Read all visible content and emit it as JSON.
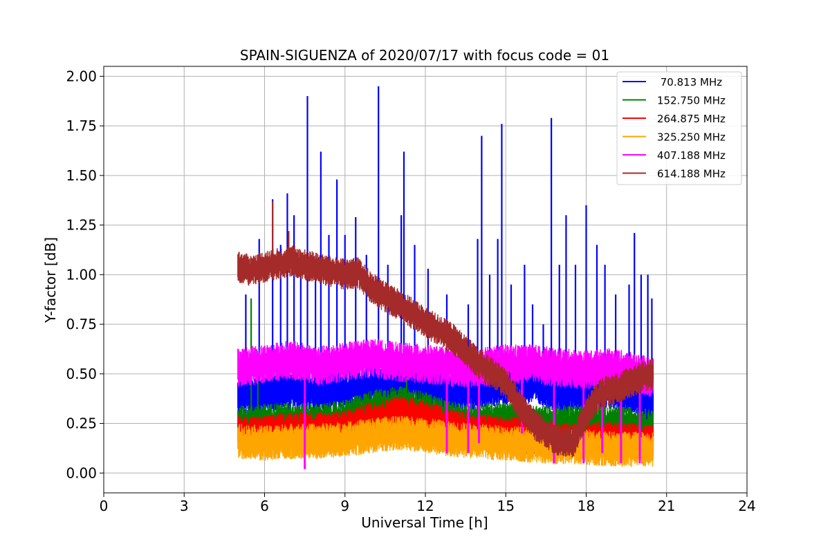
{
  "chart_data": {
    "type": "line",
    "title": "SPAIN-SIGUENZA of 2020/07/17 with focus code = 01",
    "xlabel": "Universal Time [h]",
    "ylabel": "Y-factor [dB]",
    "xlim": [
      0,
      24
    ],
    "ylim": [
      -0.1,
      2.05
    ],
    "x_ticks": [
      "0",
      "3",
      "6",
      "9",
      "12",
      "15",
      "18",
      "21",
      "24"
    ],
    "y_ticks": [
      "0.00",
      "0.25",
      "0.50",
      "0.75",
      "1.00",
      "1.25",
      "1.50",
      "1.75",
      "2.00"
    ],
    "grid": true,
    "legend_position": "top-right",
    "series": [
      {
        "name": " 70.813 MHz",
        "color": "#0000ff",
        "baseline": {
          "x": [
            5.0,
            6.0,
            7.0,
            8.0,
            9.0,
            10.0,
            11.0,
            12.0,
            13.0,
            14.0,
            15.0,
            16.0,
            17.0,
            18.0,
            19.0,
            20.0,
            20.5
          ],
          "y": [
            0.38,
            0.4,
            0.42,
            0.4,
            0.42,
            0.44,
            0.46,
            0.44,
            0.4,
            0.42,
            0.44,
            0.45,
            0.4,
            0.4,
            0.42,
            0.38,
            0.35
          ]
        },
        "spread": 0.1,
        "spikes": [
          [
            5.3,
            0.9
          ],
          [
            5.8,
            1.18
          ],
          [
            6.3,
            1.38
          ],
          [
            6.6,
            1.15
          ],
          [
            6.85,
            1.41
          ],
          [
            7.1,
            1.3
          ],
          [
            7.35,
            1.1
          ],
          [
            7.6,
            1.9
          ],
          [
            7.9,
            1.05
          ],
          [
            8.1,
            1.62
          ],
          [
            8.4,
            1.2
          ],
          [
            8.7,
            1.48
          ],
          [
            9.0,
            1.2
          ],
          [
            9.4,
            1.29
          ],
          [
            9.8,
            1.1
          ],
          [
            10.25,
            1.95
          ],
          [
            10.6,
            1.05
          ],
          [
            11.1,
            1.3
          ],
          [
            11.2,
            1.62
          ],
          [
            11.6,
            1.15
          ],
          [
            12.1,
            1.03
          ],
          [
            12.8,
            0.9
          ],
          [
            13.6,
            0.85
          ],
          [
            13.95,
            1.18
          ],
          [
            14.1,
            1.7
          ],
          [
            14.4,
            1.0
          ],
          [
            14.7,
            1.18
          ],
          [
            14.85,
            1.76
          ],
          [
            15.2,
            0.95
          ],
          [
            15.7,
            1.05
          ],
          [
            16.0,
            0.85
          ],
          [
            16.4,
            0.75
          ],
          [
            16.7,
            1.79
          ],
          [
            17.0,
            1.05
          ],
          [
            17.25,
            1.3
          ],
          [
            17.6,
            1.05
          ],
          [
            18.0,
            1.35
          ],
          [
            18.4,
            1.15
          ],
          [
            18.7,
            1.05
          ],
          [
            19.1,
            0.9
          ],
          [
            19.6,
            0.95
          ],
          [
            19.8,
            1.21
          ],
          [
            20.05,
            1.0
          ],
          [
            20.3,
            1.0
          ],
          [
            20.45,
            0.88
          ]
        ]
      },
      {
        "name": "152.750 MHz",
        "color": "#008000",
        "baseline": {
          "x": [
            5.0,
            6.0,
            7.0,
            8.0,
            9.0,
            10.0,
            11.0,
            12.0,
            13.0,
            14.0,
            15.0,
            16.0,
            17.0,
            18.0,
            19.0,
            20.0,
            20.5
          ],
          "y": [
            0.25,
            0.26,
            0.27,
            0.26,
            0.28,
            0.33,
            0.35,
            0.32,
            0.27,
            0.26,
            0.27,
            0.25,
            0.25,
            0.26,
            0.25,
            0.24,
            0.23
          ]
        },
        "spread": 0.09,
        "spikes": [
          [
            5.5,
            0.88
          ],
          [
            5.75,
            0.55
          ],
          [
            11.3,
            0.48
          ]
        ]
      },
      {
        "name": "264.875 MHz",
        "color": "#ff0000",
        "baseline": {
          "x": [
            5.0,
            6.0,
            7.0,
            8.0,
            9.0,
            10.0,
            11.0,
            12.0,
            13.0,
            14.0,
            15.0,
            16.0,
            17.0,
            18.0,
            19.0,
            20.0,
            20.5
          ],
          "y": [
            0.2,
            0.2,
            0.22,
            0.22,
            0.23,
            0.27,
            0.3,
            0.28,
            0.23,
            0.21,
            0.2,
            0.18,
            0.16,
            0.17,
            0.17,
            0.16,
            0.15
          ]
        },
        "spread": 0.09,
        "spikes": []
      },
      {
        "name": "325.250 MHz",
        "color": "#ffa500",
        "baseline": {
          "x": [
            5.0,
            6.0,
            7.0,
            8.0,
            9.0,
            10.0,
            11.0,
            12.0,
            13.0,
            14.0,
            15.0,
            16.0,
            17.0,
            18.0,
            19.0,
            20.0,
            20.5
          ],
          "y": [
            0.16,
            0.15,
            0.16,
            0.16,
            0.17,
            0.19,
            0.2,
            0.19,
            0.17,
            0.16,
            0.15,
            0.14,
            0.13,
            0.13,
            0.12,
            0.12,
            0.12
          ]
        },
        "spread": 0.09,
        "spikes": []
      },
      {
        "name": "407.188 MHz",
        "color": "#ff00ff",
        "baseline": {
          "x": [
            5.0,
            6.0,
            7.0,
            8.0,
            9.0,
            10.0,
            11.0,
            12.0,
            13.0,
            14.0,
            15.0,
            16.0,
            17.0,
            18.0,
            19.0,
            20.0,
            20.5
          ],
          "y": [
            0.53,
            0.55,
            0.57,
            0.54,
            0.56,
            0.58,
            0.56,
            0.55,
            0.53,
            0.53,
            0.55,
            0.55,
            0.53,
            0.52,
            0.53,
            0.5,
            0.48
          ]
        },
        "spread": 0.1,
        "dips": [
          [
            7.5,
            0.02
          ],
          [
            12.8,
            0.1
          ],
          [
            13.6,
            0.1
          ],
          [
            14.0,
            0.15
          ],
          [
            15.6,
            0.2
          ],
          [
            16.8,
            0.05
          ],
          [
            17.9,
            0.05
          ],
          [
            18.6,
            0.1
          ],
          [
            19.3,
            0.05
          ],
          [
            20.0,
            0.05
          ]
        ]
      },
      {
        "name": "614.188 MHz",
        "color": "#a52a2a",
        "baseline": {
          "x": [
            5.0,
            5.5,
            6.0,
            7.0,
            8.0,
            9.0,
            9.5,
            10.0,
            11.0,
            12.0,
            13.0,
            14.0,
            15.0,
            15.5,
            16.0,
            16.5,
            17.0,
            17.5,
            18.0,
            18.5,
            19.0,
            20.0,
            20.5
          ],
          "y": [
            1.04,
            1.02,
            1.04,
            1.07,
            1.03,
            1.0,
            1.01,
            0.93,
            0.85,
            0.76,
            0.68,
            0.55,
            0.45,
            0.35,
            0.25,
            0.2,
            0.16,
            0.15,
            0.3,
            0.4,
            0.42,
            0.48,
            0.5
          ]
        },
        "spread": 0.08,
        "spikes": [
          [
            6.3,
            1.37
          ],
          [
            6.9,
            1.22
          ]
        ]
      }
    ]
  }
}
